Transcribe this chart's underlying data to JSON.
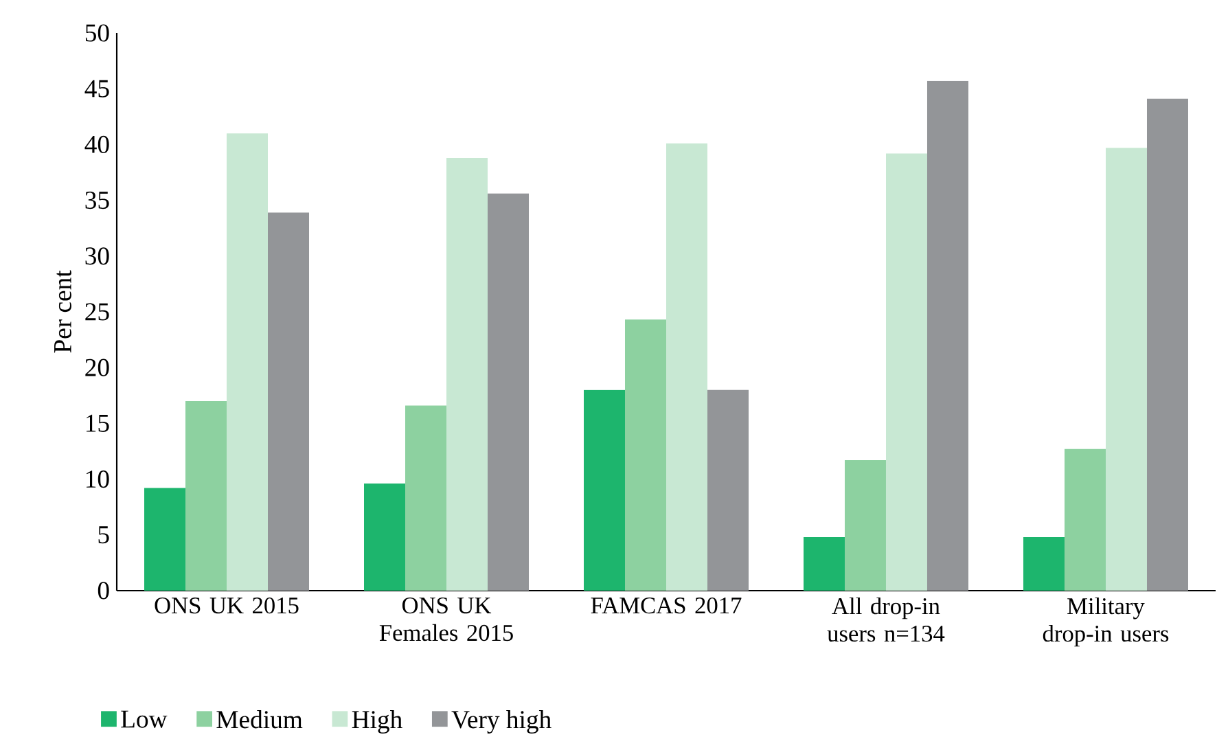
{
  "chart_data": {
    "type": "bar",
    "ylabel": "Per cent",
    "categories": [
      "ONS UK 2015",
      "ONS UK Females 2015",
      "FAMCAS 2017",
      "All drop-in users n=134",
      "Military drop-in users"
    ],
    "series": [
      {
        "name": "Low",
        "color": "#1db56d",
        "values": [
          9.2,
          9.6,
          18.0,
          4.8,
          4.8
        ]
      },
      {
        "name": "Medium",
        "color": "#8dd1a0",
        "values": [
          17.0,
          16.6,
          24.3,
          11.7,
          12.7
        ]
      },
      {
        "name": "High",
        "color": "#c8e8d3",
        "values": [
          41.0,
          38.8,
          40.1,
          39.2,
          39.7
        ]
      },
      {
        "name": "Very high",
        "color": "#939598",
        "values": [
          33.9,
          35.6,
          18.0,
          45.7,
          44.1
        ]
      }
    ],
    "ylim": [
      0,
      50
    ],
    "yticks": [
      0,
      5,
      10,
      15,
      20,
      25,
      30,
      35,
      40,
      45,
      50
    ],
    "grid": false,
    "legend": "bottom left"
  }
}
